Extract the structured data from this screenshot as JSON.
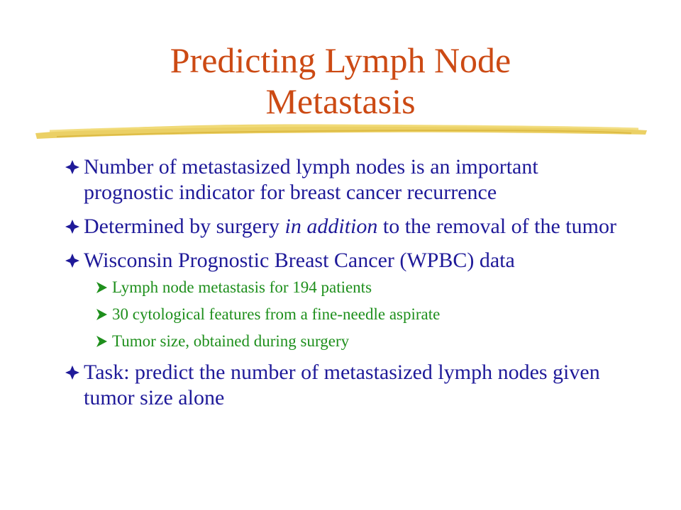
{
  "slide": {
    "title_line1": "Predicting Lymph Node",
    "title_line2": "Metastasis",
    "colors": {
      "title": "#cc4a14",
      "level1_text": "#1f1a99",
      "level2_text": "#1e8f1c",
      "underline": "#e8c84a"
    },
    "bullets": [
      {
        "icon": "diamond-bullet-icon",
        "text": "Number of metastasized lymph nodes is an important prognostic indicator for breast cancer recurrence"
      },
      {
        "icon": "diamond-bullet-icon",
        "text_before": "Determined by surgery ",
        "text_italic": "in addition",
        "text_after": " to the removal of the tumor"
      },
      {
        "icon": "diamond-bullet-icon",
        "text": "Wisconsin Prognostic Breast Cancer (WPBC) data"
      },
      {
        "icon": "diamond-bullet-icon",
        "text": "Task: predict the number of metastasized lymph nodes given tumor size alone"
      }
    ],
    "sub_bullets": [
      {
        "icon": "arrow-bullet-icon",
        "text": "Lymph node metastasis for 194 patients"
      },
      {
        "icon": "arrow-bullet-icon",
        "text": "30 cytological features from a fine-needle aspirate"
      },
      {
        "icon": "arrow-bullet-icon",
        "text": "Tumor size, obtained during surgery"
      }
    ]
  }
}
